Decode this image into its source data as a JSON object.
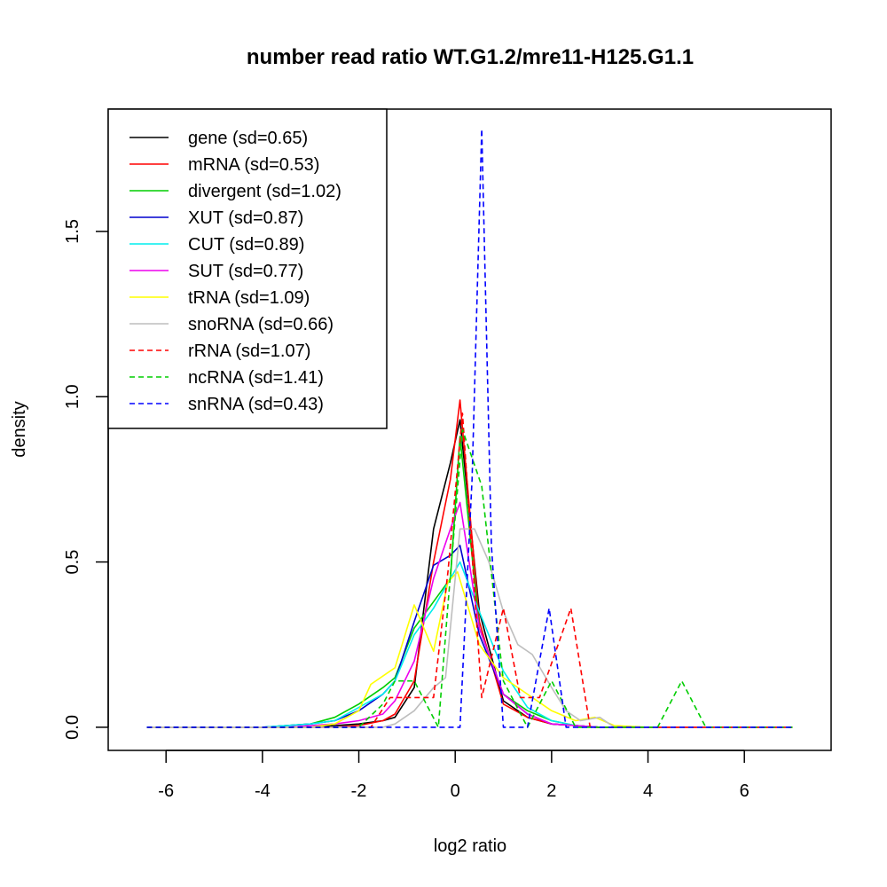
{
  "chart_data": {
    "type": "line",
    "title": "number read ratio WT.G1.2/mre11-H125.G1.1",
    "xlabel": "log2 ratio",
    "ylabel": "density",
    "xlim": [
      -7.2,
      7.8
    ],
    "ylim": [
      -0.07,
      1.87
    ],
    "xticks": [
      -6,
      -4,
      -2,
      0,
      2,
      4,
      6
    ],
    "xtick_labels": [
      "-6",
      "-4",
      "-2",
      "0",
      "2",
      "4",
      "6"
    ],
    "yticks": [
      0.0,
      0.5,
      1.0,
      1.5
    ],
    "ytick_labels": [
      "0.0",
      "0.5",
      "1.0",
      "1.5"
    ],
    "legend_position": "top-left",
    "series": [
      {
        "name": "gene",
        "label": "gene (sd=0.65)",
        "color": "#000000",
        "dash": "solid",
        "x": [
          -6.4,
          -5.0,
          -4.0,
          -3.5,
          -3.0,
          -2.5,
          -2.0,
          -1.5,
          -1.25,
          -0.85,
          -0.45,
          -0.1,
          0.1,
          0.5,
          1.0,
          1.5,
          2.0,
          2.5,
          3.0,
          4.0,
          5.0,
          7.0
        ],
        "y": [
          0.0,
          0.0,
          0.0,
          0.0,
          0.0,
          0.005,
          0.01,
          0.02,
          0.03,
          0.12,
          0.6,
          0.8,
          0.93,
          0.35,
          0.08,
          0.03,
          0.01,
          0.005,
          0.0,
          0.0,
          0.0,
          0.0
        ]
      },
      {
        "name": "mRNA",
        "label": "mRNA (sd=0.53)",
        "color": "#ff0000",
        "dash": "solid",
        "x": [
          -6.4,
          -5.0,
          -4.0,
          -3.5,
          -3.0,
          -2.5,
          -2.0,
          -1.5,
          -1.25,
          -0.85,
          -0.45,
          -0.1,
          0.1,
          0.5,
          1.0,
          1.5,
          2.0,
          2.5,
          3.0,
          4.0,
          5.0,
          7.0
        ],
        "y": [
          0.0,
          0.0,
          0.0,
          0.0,
          0.0,
          0.0,
          0.005,
          0.02,
          0.04,
          0.14,
          0.5,
          0.75,
          0.99,
          0.32,
          0.07,
          0.03,
          0.01,
          0.005,
          0.0,
          0.0,
          0.0,
          0.0
        ]
      },
      {
        "name": "divergent",
        "label": "divergent (sd=1.02)",
        "color": "#00cd00",
        "dash": "solid",
        "x": [
          -6.4,
          -5.0,
          -4.0,
          -3.5,
          -3.0,
          -2.5,
          -2.0,
          -1.5,
          -1.25,
          -0.85,
          -0.45,
          -0.1,
          0.1,
          0.5,
          1.0,
          1.5,
          2.0,
          2.5,
          3.0,
          4.0,
          5.0,
          7.0
        ],
        "y": [
          0.0,
          0.0,
          0.0,
          0.005,
          0.01,
          0.03,
          0.07,
          0.12,
          0.15,
          0.3,
          0.38,
          0.45,
          0.88,
          0.3,
          0.1,
          0.05,
          0.02,
          0.005,
          0.0,
          0.0,
          0.0,
          0.0
        ]
      },
      {
        "name": "XUT",
        "label": "XUT (sd=0.87)",
        "color": "#0000cd",
        "dash": "solid",
        "x": [
          -6.4,
          -5.0,
          -4.0,
          -3.5,
          -3.0,
          -2.5,
          -2.0,
          -1.5,
          -1.25,
          -0.85,
          -0.45,
          -0.1,
          0.1,
          0.5,
          1.0,
          1.5,
          2.0,
          2.5,
          3.0,
          4.0,
          5.0,
          7.0
        ],
        "y": [
          0.0,
          0.0,
          0.0,
          0.005,
          0.01,
          0.02,
          0.05,
          0.1,
          0.14,
          0.32,
          0.49,
          0.52,
          0.55,
          0.28,
          0.1,
          0.04,
          0.01,
          0.005,
          0.0,
          0.0,
          0.0,
          0.0
        ]
      },
      {
        "name": "CUT",
        "label": "CUT (sd=0.89)",
        "color": "#00eeee",
        "dash": "solid",
        "x": [
          -6.4,
          -5.0,
          -4.0,
          -3.5,
          -3.0,
          -2.5,
          -2.0,
          -1.5,
          -1.25,
          -0.85,
          -0.45,
          -0.1,
          0.1,
          0.5,
          1.0,
          1.5,
          2.0,
          2.5,
          3.0,
          4.0,
          5.0,
          7.0
        ],
        "y": [
          0.0,
          0.0,
          0.0,
          0.005,
          0.01,
          0.02,
          0.06,
          0.1,
          0.14,
          0.28,
          0.36,
          0.45,
          0.5,
          0.35,
          0.17,
          0.06,
          0.02,
          0.005,
          0.0,
          0.0,
          0.0,
          0.0
        ]
      },
      {
        "name": "SUT",
        "label": "SUT (sd=0.77)",
        "color": "#ee00ee",
        "dash": "solid",
        "x": [
          -6.4,
          -5.0,
          -4.0,
          -3.5,
          -3.0,
          -2.5,
          -2.0,
          -1.5,
          -1.25,
          -0.85,
          -0.45,
          -0.1,
          0.1,
          0.5,
          1.0,
          1.5,
          2.0,
          2.5,
          3.0,
          4.0,
          5.0,
          7.0
        ],
        "y": [
          0.0,
          0.0,
          0.0,
          0.0,
          0.005,
          0.01,
          0.02,
          0.04,
          0.08,
          0.2,
          0.45,
          0.6,
          0.68,
          0.3,
          0.1,
          0.04,
          0.01,
          0.005,
          0.0,
          0.0,
          0.0,
          0.0
        ]
      },
      {
        "name": "tRNA",
        "label": "tRNA (sd=1.09)",
        "color": "#ffff00",
        "dash": "solid",
        "x": [
          -6.4,
          -4.0,
          -3.0,
          -2.5,
          -2.0,
          -1.75,
          -1.25,
          -0.85,
          -0.45,
          -0.15,
          0.05,
          0.5,
          1.0,
          1.5,
          2.0,
          2.5,
          2.9,
          3.3,
          4.0,
          7.0
        ],
        "y": [
          0.0,
          0.0,
          0.0,
          0.01,
          0.05,
          0.13,
          0.18,
          0.37,
          0.23,
          0.44,
          0.47,
          0.25,
          0.15,
          0.1,
          0.05,
          0.02,
          0.03,
          0.005,
          0.0,
          0.0
        ]
      },
      {
        "name": "snoRNA",
        "label": "snoRNA (sd=0.66)",
        "color": "#bebebe",
        "dash": "solid",
        "x": [
          -6.4,
          -3.0,
          -2.0,
          -1.5,
          -1.25,
          -0.85,
          -0.45,
          -0.2,
          0.1,
          0.4,
          0.7,
          1.0,
          1.3,
          1.6,
          2.0,
          2.3,
          2.6,
          3.0,
          3.3,
          4.0,
          7.0
        ],
        "y": [
          0.0,
          0.0,
          0.0,
          0.0,
          0.01,
          0.05,
          0.12,
          0.15,
          0.6,
          0.6,
          0.5,
          0.35,
          0.25,
          0.22,
          0.12,
          0.05,
          0.02,
          0.03,
          0.0,
          0.0,
          0.0
        ]
      },
      {
        "name": "rRNA",
        "label": "rRNA (sd=1.07)",
        "color": "#ff0000",
        "dash": "dashed",
        "x": [
          -6.4,
          -3.0,
          -2.0,
          -1.75,
          -1.35,
          -0.85,
          -0.45,
          -0.15,
          0.15,
          0.55,
          1.0,
          1.35,
          1.75,
          2.4,
          2.8,
          3.2,
          7.0
        ],
        "y": [
          0.0,
          0.0,
          0.0,
          0.0,
          0.09,
          0.09,
          0.09,
          0.47,
          0.95,
          0.09,
          0.36,
          0.09,
          0.09,
          0.36,
          0.0,
          0.0,
          0.0
        ]
      },
      {
        "name": "ncRNA",
        "label": "ncRNA (sd=1.41)",
        "color": "#00cd00",
        "dash": "dashed",
        "x": [
          -6.4,
          -3.0,
          -2.0,
          -1.5,
          -1.25,
          -0.85,
          -0.35,
          -0.15,
          0.15,
          0.55,
          1.0,
          1.5,
          2.0,
          2.5,
          3.0,
          4.2,
          4.7,
          5.2,
          7.0
        ],
        "y": [
          0.0,
          0.0,
          0.0,
          0.07,
          0.14,
          0.14,
          0.0,
          0.37,
          0.9,
          0.73,
          0.14,
          0.0,
          0.14,
          0.0,
          0.0,
          0.0,
          0.14,
          0.0,
          0.0
        ]
      },
      {
        "name": "snRNA",
        "label": "snRNA (sd=0.43)",
        "color": "#0000ff",
        "dash": "dashed",
        "x": [
          -6.4,
          -2.0,
          0.1,
          0.35,
          0.55,
          0.75,
          1.0,
          1.5,
          1.95,
          2.3,
          2.6,
          7.0
        ],
        "y": [
          0.0,
          0.0,
          0.0,
          0.75,
          1.81,
          0.55,
          0.0,
          0.0,
          0.36,
          0.0,
          0.0,
          0.0
        ]
      }
    ]
  }
}
